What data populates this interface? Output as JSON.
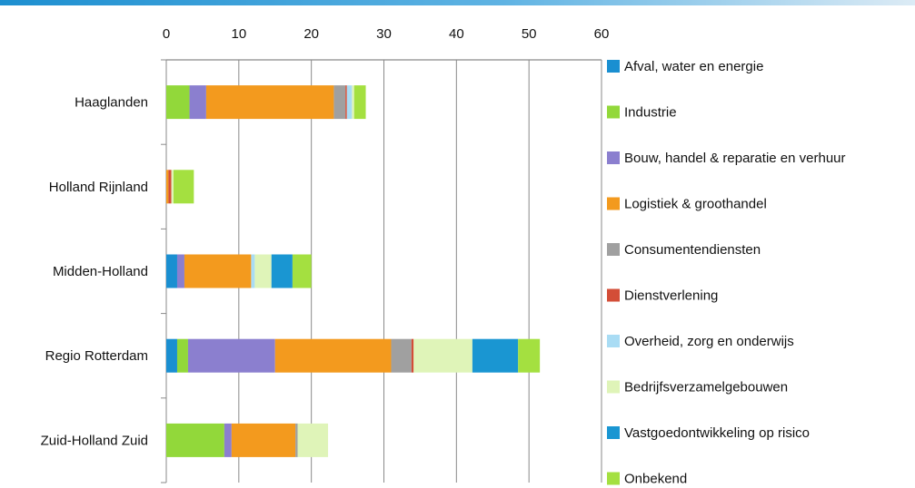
{
  "chart_data": {
    "type": "bar",
    "orientation": "horizontal",
    "stacked": true,
    "title": "",
    "xlabel": "",
    "ylabel": "",
    "xlim": [
      0,
      60
    ],
    "xticks": [
      "0",
      "10",
      "20",
      "30",
      "40",
      "50",
      "60"
    ],
    "grid": true,
    "legend_position": "right",
    "categories": [
      "Haaglanden",
      "Holland Rijnland",
      "Midden-Holland",
      "Regio Rotterdam",
      "Zuid-Holland Zuid"
    ],
    "series": [
      {
        "name": "Afval, water en energie",
        "color": "#1a8fd1",
        "values": [
          0,
          0,
          1.5,
          1.5,
          0
        ]
      },
      {
        "name": "Industrie",
        "color": "#92d83a",
        "values": [
          3.2,
          0,
          0,
          1.5,
          8.0
        ]
      },
      {
        "name": "Bouw, handel & reparatie en verhuur",
        "color": "#8b7fcf",
        "values": [
          2.3,
          0,
          1.0,
          12.0,
          1.0
        ]
      },
      {
        "name": "Logistiek & groothandel",
        "color": "#f39a1e",
        "values": [
          17.6,
          0.3,
          9.2,
          16.0,
          8.8
        ]
      },
      {
        "name": "Consumentendiensten",
        "color": "#a0a0a0",
        "values": [
          1.6,
          0,
          0,
          2.8,
          0.3
        ]
      },
      {
        "name": "Dienstverlening",
        "color": "#d34d37",
        "values": [
          0.2,
          0.4,
          0,
          0.3,
          0
        ]
      },
      {
        "name": "Overheid, zorg en onderwijs",
        "color": "#a9dcf4",
        "values": [
          0.7,
          0,
          0.5,
          0,
          0
        ]
      },
      {
        "name": "Bedrijfsverzamelgebouwen",
        "color": "#dff4b8",
        "values": [
          0.3,
          0.3,
          2.3,
          8.1,
          4.2
        ]
      },
      {
        "name": "Vastgoedontwikkeling op risico",
        "color": "#1a96d2",
        "values": [
          0,
          0,
          2.9,
          6.3,
          0
        ]
      },
      {
        "name": "Onbekend",
        "color": "#a4e040",
        "values": [
          1.6,
          2.8,
          2.6,
          3.0,
          0
        ]
      }
    ]
  }
}
